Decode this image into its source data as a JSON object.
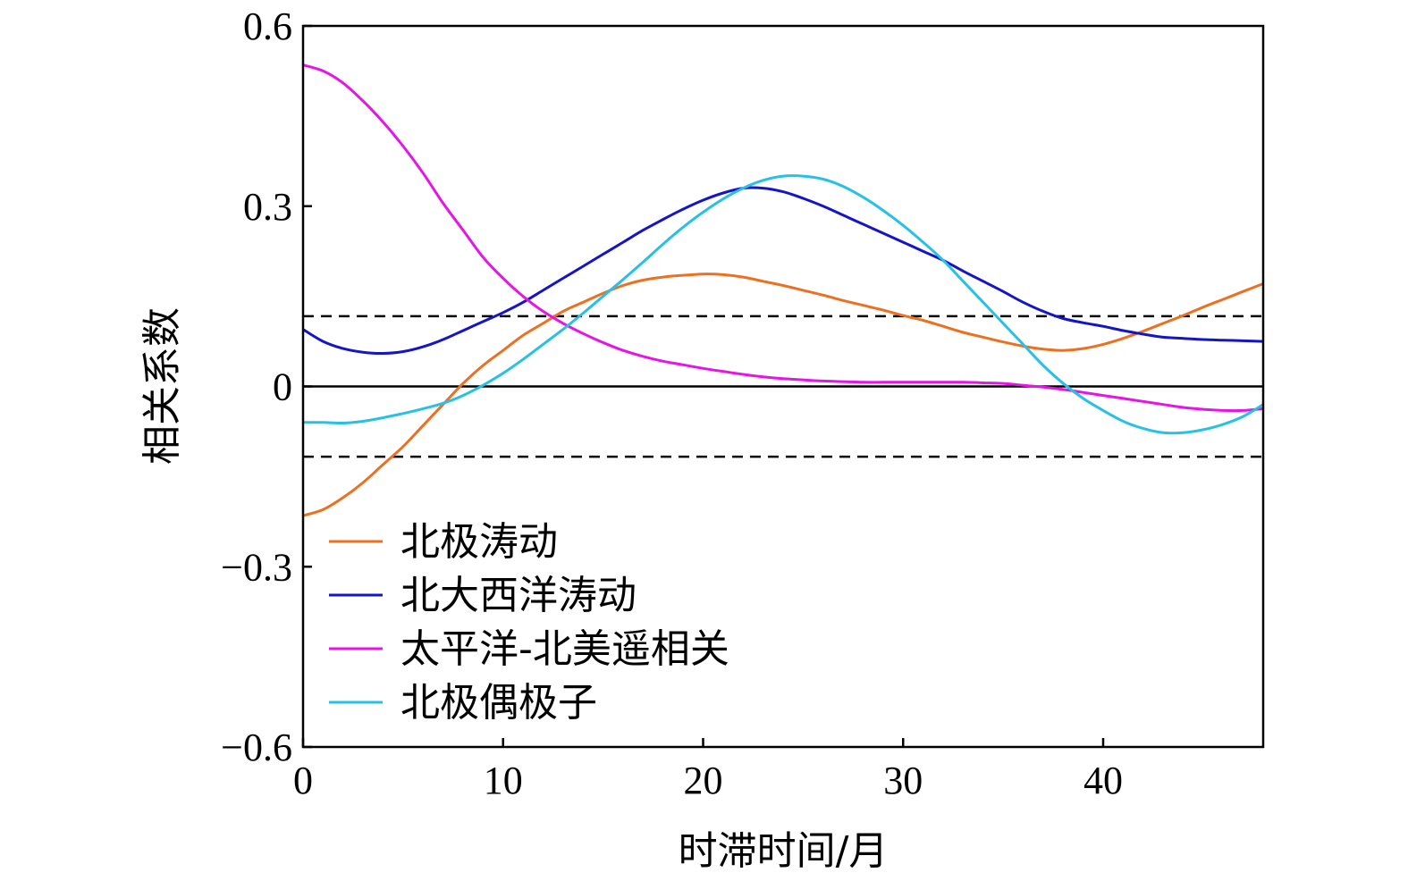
{
  "chart_data": {
    "type": "line",
    "xlabel": "时滞时间/月",
    "ylabel": "相关系数",
    "xlim": [
      0,
      48
    ],
    "ylim": [
      -0.6,
      0.6
    ],
    "xticks": [
      0,
      10,
      20,
      30,
      40
    ],
    "xtick_labels": [
      "0",
      "10",
      "20",
      "30",
      "40"
    ],
    "yticks": [
      -0.6,
      -0.3,
      0,
      0.3,
      0.6
    ],
    "ytick_labels": [
      "−0.6",
      "−0.3",
      "0",
      "0.3",
      "0.6"
    ],
    "grid": false,
    "legend_position": "bottom-left",
    "reference_lines": [
      {
        "y": 0,
        "style": "solid",
        "color": "#000000"
      },
      {
        "y": 0.117,
        "style": "dashed",
        "color": "#000000"
      },
      {
        "y": -0.117,
        "style": "dashed",
        "color": "#000000"
      }
    ],
    "x": [
      0,
      1,
      2,
      3,
      4,
      5,
      6,
      7,
      8,
      9,
      10,
      11,
      12,
      13,
      14,
      15,
      16,
      17,
      18,
      19,
      20,
      21,
      22,
      23,
      24,
      25,
      26,
      27,
      28,
      29,
      30,
      31,
      32,
      33,
      34,
      35,
      36,
      37,
      38,
      39,
      40,
      41,
      42,
      43,
      44,
      45,
      46,
      47,
      48
    ],
    "series": [
      {
        "name": "北极涛动",
        "color": "#ED7020",
        "values": [
          -0.215,
          -0.205,
          -0.185,
          -0.16,
          -0.13,
          -0.1,
          -0.065,
          -0.03,
          0.005,
          0.035,
          0.06,
          0.085,
          0.105,
          0.125,
          0.14,
          0.155,
          0.168,
          0.177,
          0.182,
          0.185,
          0.187,
          0.186,
          0.182,
          0.175,
          0.168,
          0.16,
          0.152,
          0.143,
          0.135,
          0.127,
          0.118,
          0.11,
          0.1,
          0.09,
          0.082,
          0.074,
          0.067,
          0.062,
          0.06,
          0.063,
          0.07,
          0.08,
          0.092,
          0.105,
          0.118,
          0.132,
          0.145,
          0.158,
          0.171
        ]
      },
      {
        "name": "北大西洋涛动",
        "color": "#1414C8",
        "values": [
          0.095,
          0.075,
          0.063,
          0.057,
          0.055,
          0.058,
          0.066,
          0.078,
          0.093,
          0.108,
          0.123,
          0.14,
          0.16,
          0.18,
          0.2,
          0.22,
          0.24,
          0.26,
          0.278,
          0.295,
          0.31,
          0.322,
          0.33,
          0.33,
          0.324,
          0.313,
          0.3,
          0.285,
          0.27,
          0.255,
          0.24,
          0.225,
          0.21,
          0.192,
          0.175,
          0.158,
          0.14,
          0.125,
          0.113,
          0.106,
          0.1,
          0.093,
          0.087,
          0.082,
          0.08,
          0.078,
          0.077,
          0.076,
          0.075
        ]
      },
      {
        "name": "太平洋-北美遥相关",
        "color": "#E614E6",
        "values": [
          0.535,
          0.525,
          0.505,
          0.475,
          0.44,
          0.4,
          0.355,
          0.305,
          0.26,
          0.215,
          0.18,
          0.15,
          0.125,
          0.105,
          0.088,
          0.073,
          0.06,
          0.05,
          0.042,
          0.036,
          0.03,
          0.025,
          0.02,
          0.016,
          0.013,
          0.011,
          0.009,
          0.008,
          0.007,
          0.007,
          0.007,
          0.007,
          0.007,
          0.007,
          0.006,
          0.005,
          0.002,
          -0.001,
          -0.005,
          -0.01,
          -0.015,
          -0.02,
          -0.025,
          -0.03,
          -0.035,
          -0.038,
          -0.04,
          -0.04,
          -0.037
        ]
      },
      {
        "name": "北极偶极子",
        "color": "#28C0E6",
        "values": [
          -0.06,
          -0.06,
          -0.061,
          -0.058,
          -0.052,
          -0.045,
          -0.037,
          -0.028,
          -0.015,
          0.002,
          0.022,
          0.045,
          0.07,
          0.095,
          0.122,
          0.15,
          0.178,
          0.207,
          0.237,
          0.265,
          0.29,
          0.312,
          0.33,
          0.343,
          0.35,
          0.35,
          0.345,
          0.333,
          0.315,
          0.293,
          0.268,
          0.24,
          0.21,
          0.175,
          0.14,
          0.105,
          0.07,
          0.035,
          0.005,
          -0.02,
          -0.04,
          -0.058,
          -0.07,
          -0.077,
          -0.077,
          -0.072,
          -0.063,
          -0.05,
          -0.03
        ]
      }
    ]
  }
}
